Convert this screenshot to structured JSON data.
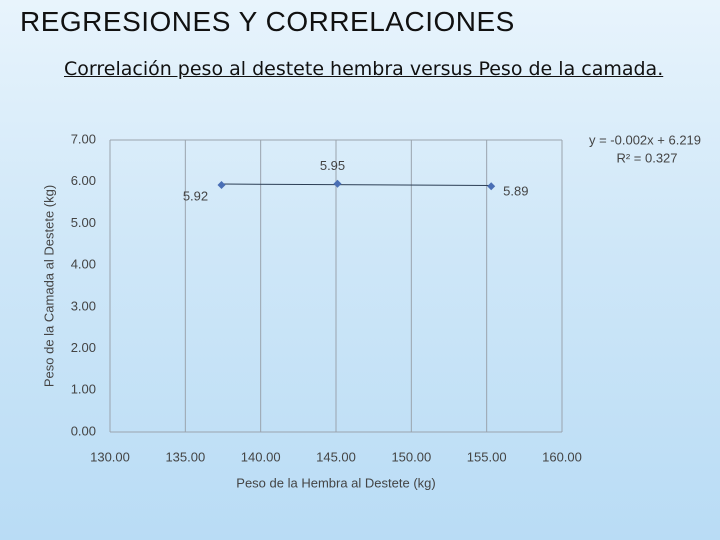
{
  "slide_title": "REGRESIONES Y CORRELACIONES",
  "slide_subtitle": "Correlación peso al destete hembra versus Peso de la camada.",
  "chart_data": {
    "type": "scatter",
    "x": [
      137.4,
      145.1,
      155.3
    ],
    "values": [
      5.92,
      5.95,
      5.89
    ],
    "color": "#4a6fb5",
    "x_label": "Peso de la Hembra al Destete (kg)",
    "y_label": "Peso de la Camada al Destete (kg)",
    "xlim": [
      130,
      160
    ],
    "xticks": [
      {
        "value": 130,
        "label": "130.00"
      },
      {
        "value": 135,
        "label": "135.00"
      },
      {
        "value": 140,
        "label": "140.00"
      },
      {
        "value": 145,
        "label": "145.00"
      },
      {
        "value": 150,
        "label": "150.00"
      },
      {
        "value": 155,
        "label": "155.00"
      },
      {
        "value": 160,
        "label": "160.00"
      }
    ],
    "ylim": [
      0,
      7
    ],
    "yticks": [
      {
        "value": 0,
        "label": "0.00"
      },
      {
        "value": 1,
        "label": "1.00"
      },
      {
        "value": 2,
        "label": "2.00"
      },
      {
        "value": 3,
        "label": "3.00"
      },
      {
        "value": 4,
        "label": "4.00"
      },
      {
        "value": 5,
        "label": "5.00"
      },
      {
        "value": 6,
        "label": "6.00"
      },
      {
        "value": 7,
        "label": "7.00"
      }
    ],
    "grid": true,
    "trendline": {
      "equation": "y = -0.002x + 6.219",
      "r2": "R² = 0.327",
      "slope": -0.002,
      "intercept": 6.219
    }
  }
}
